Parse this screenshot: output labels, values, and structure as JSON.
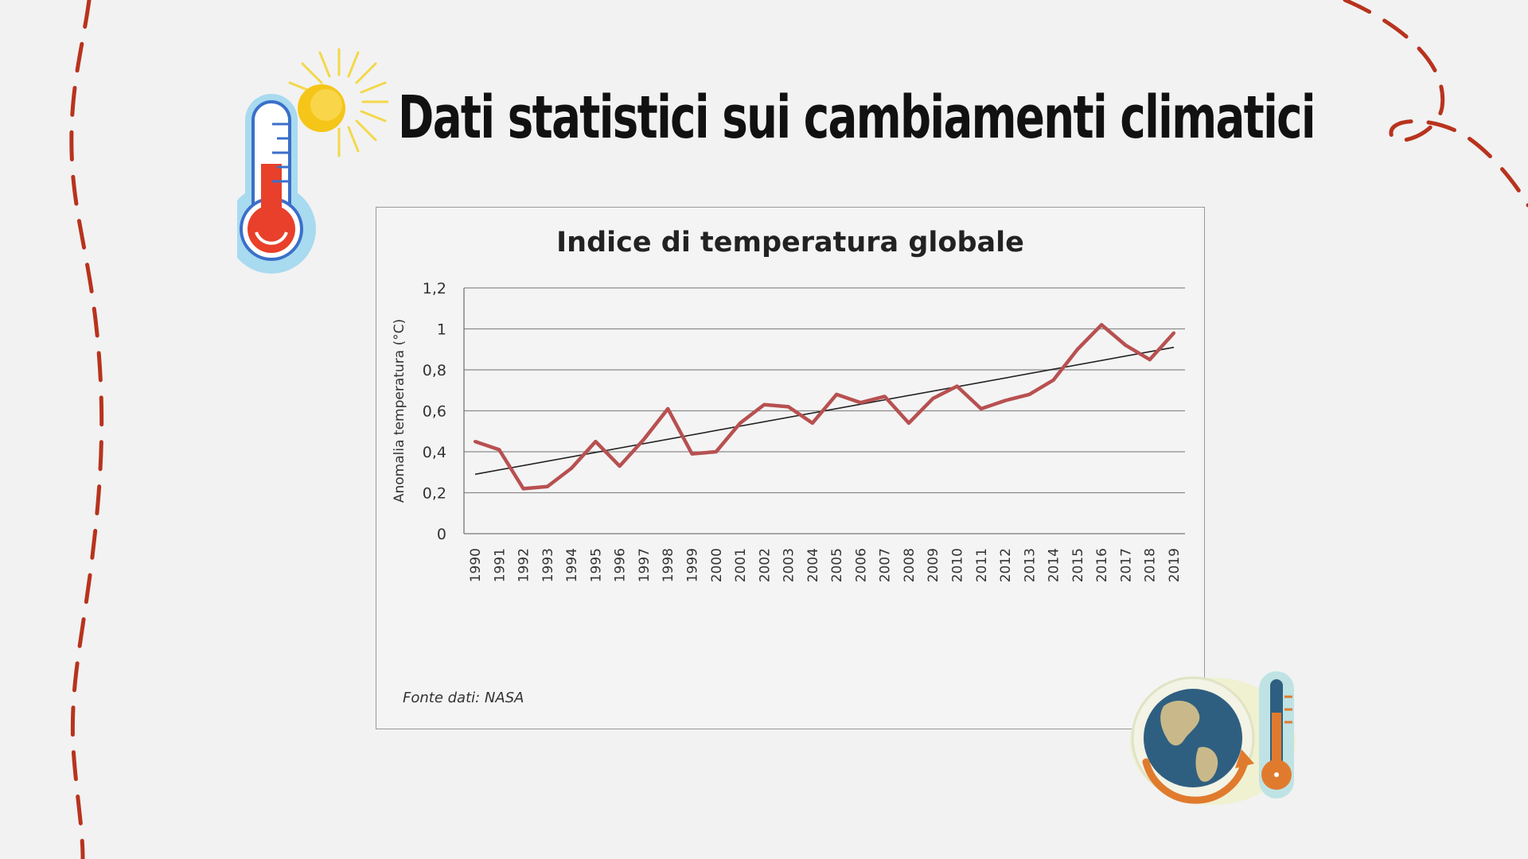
{
  "slide": {
    "title": "Dati statistici sui cambiamenti climatici",
    "source": "Fonte dati: NASA"
  },
  "icons": [
    "thermometer-sun-icon",
    "globe-thermometer-icon"
  ],
  "colors": {
    "series": "#b85050",
    "trend": "#222222",
    "dashes": "#b8331d"
  },
  "chart_data": {
    "type": "line",
    "title": "Indice di temperatura globale",
    "xlabel": "",
    "ylabel": "Anomalia temperatura (°C)",
    "ylim": [
      0,
      1.2
    ],
    "yticks": [
      "0",
      "0,2",
      "0,4",
      "0,6",
      "0,8",
      "1",
      "1,2"
    ],
    "grid": true,
    "categories": [
      "1990",
      "1991",
      "1992",
      "1993",
      "1994",
      "1995",
      "1996",
      "1997",
      "1998",
      "1999",
      "2000",
      "2001",
      "2002",
      "2003",
      "2004",
      "2005",
      "2006",
      "2007",
      "2008",
      "2009",
      "2010",
      "2011",
      "2012",
      "2013",
      "2014",
      "2015",
      "2016",
      "2017",
      "2018",
      "2019"
    ],
    "series": [
      {
        "values": [
          0.45,
          0.41,
          0.22,
          0.23,
          0.32,
          0.45,
          0.33,
          0.46,
          0.61,
          0.39,
          0.4,
          0.54,
          0.63,
          0.62,
          0.54,
          0.68,
          0.64,
          0.67,
          0.54,
          0.66,
          0.72,
          0.61,
          0.65,
          0.68,
          0.75,
          0.9,
          1.02,
          0.92,
          0.85,
          0.98
        ]
      }
    ],
    "trendline": {
      "start": 0.29,
      "end": 0.91
    }
  }
}
